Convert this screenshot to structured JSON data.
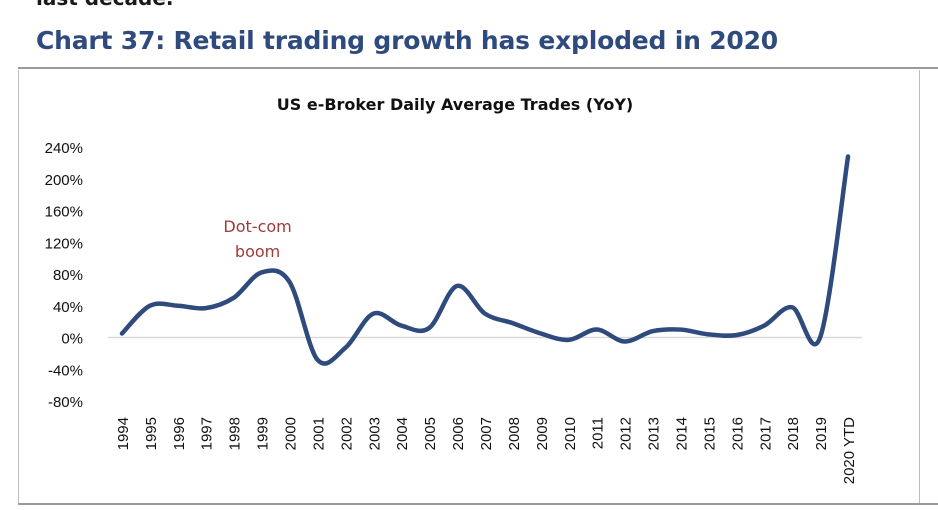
{
  "page": {
    "top_fragment": "last decade.",
    "heading": "Chart 37: Retail trading growth has exploded in 2020"
  },
  "chart_data": {
    "type": "line",
    "title": "US e-Broker Daily Average Trades (YoY)",
    "xlabel": "",
    "ylabel": "",
    "categories": [
      "1994",
      "1995",
      "1996",
      "1997",
      "1998",
      "1999",
      "2000",
      "2001",
      "2002",
      "2003",
      "2004",
      "2005",
      "2006",
      "2007",
      "2008",
      "2009",
      "2010",
      "2011",
      "2012",
      "2013",
      "2014",
      "2015",
      "2016",
      "2017",
      "2018",
      "2019",
      "2020 YTD"
    ],
    "series": [
      {
        "name": "",
        "color": "#2f4a7d",
        "values": [
          5,
          40,
          40,
          37,
          50,
          82,
          70,
          -28,
          -13,
          30,
          15,
          12,
          65,
          30,
          18,
          5,
          -3,
          10,
          -5,
          8,
          10,
          4,
          3,
          15,
          38,
          0,
          228
        ]
      }
    ],
    "ylim": [
      -80,
      240
    ],
    "yticks": [
      240,
      200,
      160,
      120,
      80,
      40,
      0,
      -40,
      -80
    ],
    "ytick_labels": [
      "240%",
      "200%",
      "160%",
      "120%",
      "80%",
      "40%",
      "0%",
      "-40%",
      "-80%"
    ],
    "zero_line": true,
    "legend": "none",
    "annotations": [
      {
        "lines": [
          "Dot-com",
          "boom"
        ],
        "color": "#a33a36",
        "x_category": "1999",
        "y_value": 133
      }
    ]
  }
}
